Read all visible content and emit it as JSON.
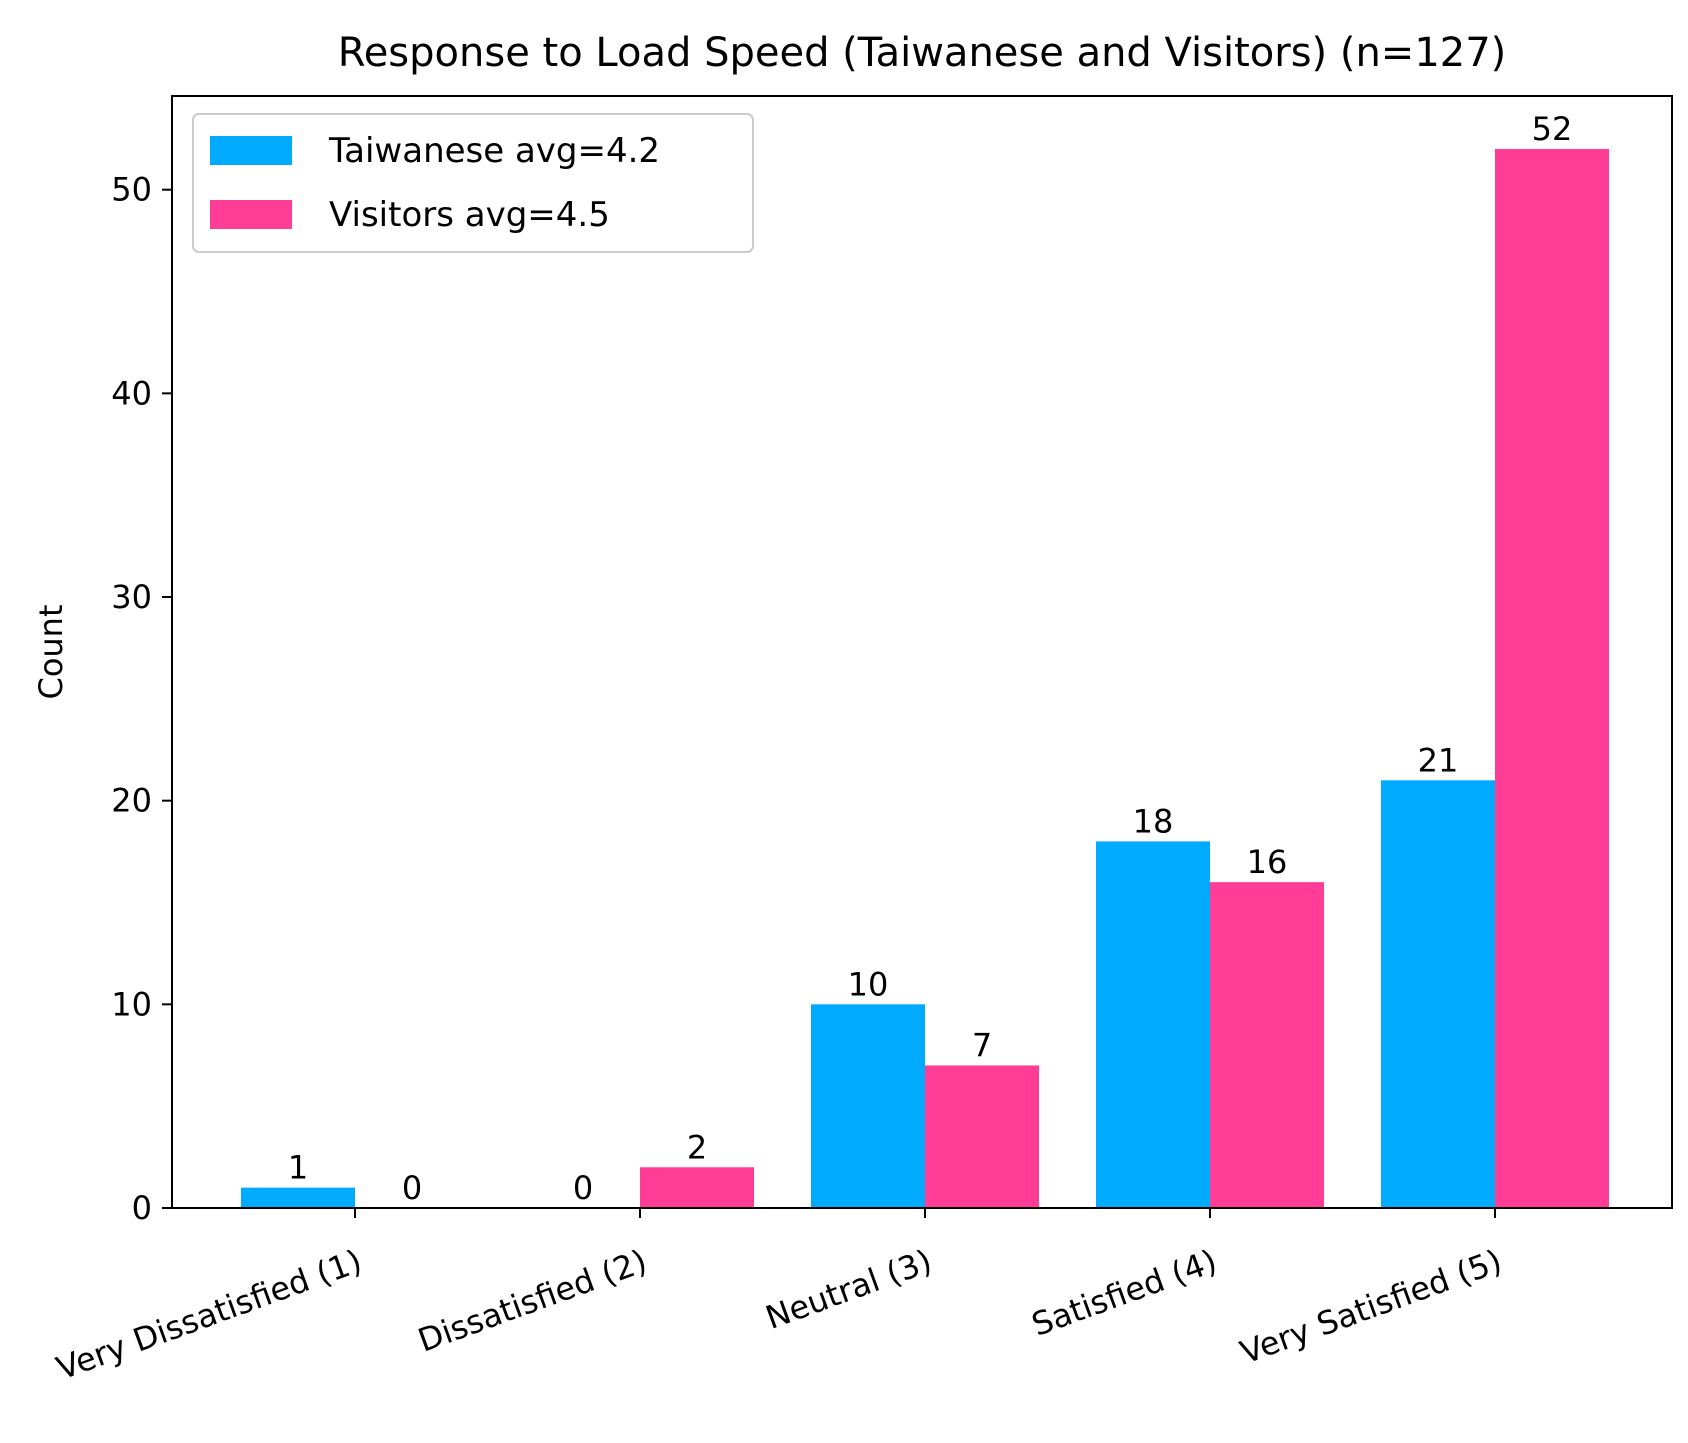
{
  "colors": {
    "taiwanese": "#00aaff",
    "visitors": "#ff3d96",
    "axis": "#000000",
    "legend_border": "#cccccc",
    "background": "#ffffff"
  },
  "chart_data": {
    "type": "bar",
    "title": "Response to Load Speed (Taiwanese and Visitors) (n=127)",
    "xlabel": "",
    "ylabel": "Count",
    "categories": [
      "Very Dissatisfied (1)",
      "Dissatisfied (2)",
      "Neutral (3)",
      "Satisfied (4)",
      "Very Satisfied (5)"
    ],
    "series": [
      {
        "name": "Taiwanese avg=4.2",
        "values": [
          1,
          0,
          10,
          18,
          21
        ]
      },
      {
        "name": "Visitors avg=4.5",
        "values": [
          0,
          2,
          7,
          16,
          52
        ]
      }
    ],
    "ylim": [
      0,
      54.6
    ],
    "yticks": [
      0,
      10,
      20,
      30,
      40,
      50
    ],
    "grid": false,
    "legend_position": "top-left",
    "tick_label_rotation": "rotated about 20 degrees counter-clockwise"
  }
}
